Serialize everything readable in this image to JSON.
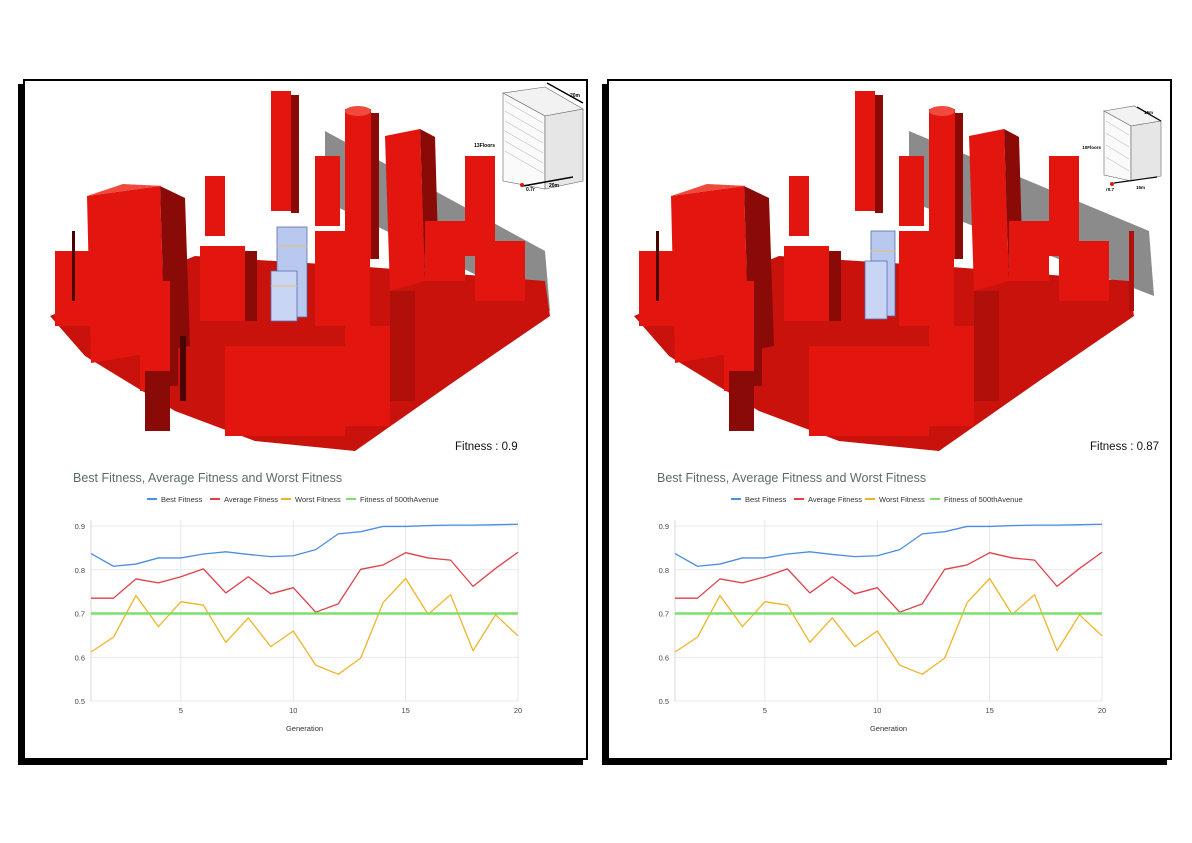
{
  "panels": [
    {
      "id": "left",
      "fitness_label": "Fitness : 0.9",
      "building_card": {
        "floors_label": "13Floors",
        "width_label": "20m",
        "depth_label": "20m",
        "offset_label": "0.7r"
      }
    },
    {
      "id": "right",
      "fitness_label": "Fitness : 0.87",
      "building_card": {
        "floors_label": "10Floors",
        "width_label": "15m",
        "depth_label": "15m",
        "offset_label": "r0.7"
      }
    }
  ],
  "colors": {
    "best": "#4a8fe0",
    "average": "#e0404a",
    "worst": "#f0b429",
    "reference": "#7de06a",
    "building": "#e2150f",
    "building_dark": "#8a0a07",
    "title": "#5f6b6b"
  },
  "chart_data": [
    {
      "type": "line",
      "title": "Best Fitness, Average Fitness and Worst Fitness",
      "xlabel": "Generation",
      "ylabel": "",
      "xlim": [
        1,
        20
      ],
      "ylim": [
        0.5,
        0.9
      ],
      "xticks": [
        5,
        10,
        15,
        20
      ],
      "yticks": [
        0.5,
        0.6,
        0.7,
        0.8,
        0.9
      ],
      "grid": true,
      "legend_position": "top",
      "x": [
        1,
        2,
        3,
        4,
        5,
        6,
        7,
        8,
        9,
        10,
        11,
        12,
        13,
        14,
        15,
        16,
        17,
        18,
        19,
        20
      ],
      "series": [
        {
          "name": "Best Fitness",
          "color_key": "best",
          "values": [
            0.837,
            0.808,
            0.813,
            0.827,
            0.827,
            0.836,
            0.841,
            0.835,
            0.83,
            0.832,
            0.846,
            0.882,
            0.887,
            0.899,
            0.899,
            0.901,
            0.902,
            0.902,
            0.903,
            0.904
          ]
        },
        {
          "name": "Average Fitness",
          "color_key": "average",
          "values": [
            0.735,
            0.735,
            0.779,
            0.77,
            0.784,
            0.802,
            0.747,
            0.784,
            0.745,
            0.759,
            0.703,
            0.722,
            0.801,
            0.811,
            0.839,
            0.827,
            0.822,
            0.762,
            0.803,
            0.84
          ]
        },
        {
          "name": "Worst Fitness",
          "color_key": "worst",
          "values": [
            0.612,
            0.646,
            0.741,
            0.67,
            0.727,
            0.719,
            0.634,
            0.69,
            0.624,
            0.66,
            0.582,
            0.561,
            0.598,
            0.725,
            0.78,
            0.698,
            0.743,
            0.615,
            0.697,
            0.649
          ]
        },
        {
          "name": "Fitness of 500thAvenue",
          "color_key": "reference",
          "values": [
            0.7,
            0.7,
            0.7,
            0.7,
            0.7,
            0.7,
            0.7,
            0.7,
            0.7,
            0.7,
            0.7,
            0.7,
            0.7,
            0.7,
            0.7,
            0.7,
            0.7,
            0.7,
            0.7,
            0.7
          ]
        }
      ]
    },
    {
      "type": "line",
      "title": "Best Fitness, Average Fitness and Worst Fitness",
      "xlabel": "Generation",
      "ylabel": "",
      "xlim": [
        1,
        20
      ],
      "ylim": [
        0.5,
        0.9
      ],
      "xticks": [
        5,
        10,
        15,
        20
      ],
      "yticks": [
        0.5,
        0.6,
        0.7,
        0.8,
        0.9
      ],
      "grid": true,
      "legend_position": "top",
      "x": [
        1,
        2,
        3,
        4,
        5,
        6,
        7,
        8,
        9,
        10,
        11,
        12,
        13,
        14,
        15,
        16,
        17,
        18,
        19,
        20
      ],
      "series": [
        {
          "name": "Best Fitness",
          "color_key": "best",
          "values": [
            0.837,
            0.808,
            0.813,
            0.827,
            0.827,
            0.836,
            0.841,
            0.835,
            0.83,
            0.832,
            0.846,
            0.882,
            0.887,
            0.899,
            0.899,
            0.901,
            0.902,
            0.902,
            0.903,
            0.904
          ]
        },
        {
          "name": "Average Fitness",
          "color_key": "average",
          "values": [
            0.735,
            0.735,
            0.779,
            0.77,
            0.784,
            0.802,
            0.747,
            0.784,
            0.745,
            0.759,
            0.703,
            0.722,
            0.801,
            0.811,
            0.839,
            0.827,
            0.822,
            0.762,
            0.803,
            0.84
          ]
        },
        {
          "name": "Worst Fitness",
          "color_key": "worst",
          "values": [
            0.612,
            0.646,
            0.741,
            0.67,
            0.727,
            0.719,
            0.634,
            0.69,
            0.624,
            0.66,
            0.582,
            0.561,
            0.598,
            0.725,
            0.78,
            0.698,
            0.743,
            0.615,
            0.697,
            0.649
          ]
        },
        {
          "name": "Fitness of 500thAvenue",
          "color_key": "reference",
          "values": [
            0.7,
            0.7,
            0.7,
            0.7,
            0.7,
            0.7,
            0.7,
            0.7,
            0.7,
            0.7,
            0.7,
            0.7,
            0.7,
            0.7,
            0.7,
            0.7,
            0.7,
            0.7,
            0.7,
            0.7
          ]
        }
      ]
    }
  ]
}
